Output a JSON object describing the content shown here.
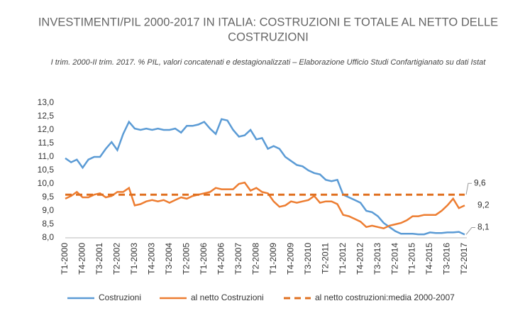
{
  "chart_data": {
    "type": "line",
    "title": "INVESTIMENTI/PIL 2000-2017 IN ITALIA: COSTRUZIONI E TOTALE AL NETTO DELLE",
    "title_line2": "COSTRUZIONI",
    "subtitle": "I trim. 2000-II trim. 2017. % PIL, valori concatenati e destagionalizzati – Elaborazione Ufficio Studi Confartigianato su dati Istat",
    "categories": [
      "T1-2000",
      null,
      null,
      "T4-2000",
      null,
      null,
      "T3-2001",
      null,
      null,
      "T2-2002",
      null,
      null,
      "T1-2003",
      null,
      null,
      "T4-2003",
      null,
      null,
      "T3-2004",
      null,
      null,
      "T2-2005",
      null,
      null,
      "T1-2006",
      null,
      null,
      "T4-2006",
      null,
      null,
      "T3-2007",
      null,
      null,
      "T2-2008",
      null,
      null,
      "T1-2009",
      null,
      null,
      "T4-2009",
      null,
      null,
      "T3-2010",
      null,
      null,
      "T2-2011",
      null,
      null,
      "T1-2012",
      null,
      null,
      "T4-2012",
      null,
      null,
      "T3-2013",
      null,
      null,
      "T2-2014",
      null,
      null,
      "T1-2015",
      null,
      null,
      "T4-2015",
      null,
      null,
      "T3-2016",
      null,
      null,
      "T2-2017"
    ],
    "series": [
      {
        "name": "Costruzioni",
        "color": "#5b9bd5",
        "dashed": false,
        "values": [
          10.95,
          10.8,
          10.9,
          10.6,
          10.9,
          11.0,
          11.0,
          11.3,
          11.55,
          11.25,
          11.85,
          12.3,
          12.05,
          12.0,
          12.05,
          12.0,
          12.05,
          12.0,
          12.0,
          12.05,
          11.9,
          12.15,
          12.15,
          12.2,
          12.3,
          12.05,
          11.85,
          12.4,
          12.35,
          12.0,
          11.75,
          11.8,
          12.0,
          11.65,
          11.7,
          11.3,
          11.4,
          11.3,
          11.0,
          10.85,
          10.7,
          10.65,
          10.5,
          10.4,
          10.35,
          10.15,
          10.1,
          10.15,
          9.6,
          9.5,
          9.4,
          9.3,
          9.0,
          8.95,
          8.8,
          8.55,
          8.4,
          8.25,
          8.15,
          8.15,
          8.15,
          8.13,
          8.13,
          8.2,
          8.18,
          8.18,
          8.2,
          8.2,
          8.22,
          8.12
        ],
        "value_labels": [
          null,
          null,
          null,
          null,
          null,
          null,
          null,
          null,
          null,
          null,
          null,
          null,
          null,
          null,
          null,
          null,
          null,
          null,
          null,
          null,
          null,
          null,
          null,
          null,
          null,
          null,
          null,
          null,
          null,
          null,
          null,
          null,
          null,
          null,
          null,
          null,
          null,
          null,
          null,
          null,
          null,
          null,
          null,
          null,
          null,
          null,
          null,
          null,
          null,
          null,
          null,
          null,
          null,
          null,
          null,
          null,
          null,
          null,
          null,
          null,
          null,
          null,
          null,
          null,
          null,
          null,
          null,
          null,
          null,
          "8,1"
        ]
      },
      {
        "name": "al netto Costruzioni",
        "color": "#ed7d31",
        "dashed": false,
        "values": [
          9.45,
          9.55,
          9.7,
          9.5,
          9.5,
          9.6,
          9.65,
          9.5,
          9.55,
          9.7,
          9.7,
          9.85,
          9.2,
          9.25,
          9.35,
          9.4,
          9.35,
          9.4,
          9.3,
          9.4,
          9.5,
          9.45,
          9.55,
          9.6,
          9.65,
          9.7,
          9.85,
          9.8,
          9.8,
          9.8,
          10.0,
          10.05,
          9.75,
          9.85,
          9.7,
          9.65,
          9.35,
          9.15,
          9.2,
          9.35,
          9.3,
          9.35,
          9.4,
          9.55,
          9.3,
          9.35,
          9.35,
          9.25,
          8.85,
          8.8,
          8.7,
          8.6,
          8.4,
          8.45,
          8.4,
          8.35,
          8.45,
          8.5,
          8.55,
          8.65,
          8.8,
          8.8,
          8.85,
          8.85,
          8.85,
          9.0,
          9.2,
          9.45,
          9.1,
          9.2
        ],
        "value_labels": [
          null,
          null,
          null,
          null,
          null,
          null,
          null,
          null,
          null,
          null,
          null,
          null,
          null,
          null,
          null,
          null,
          null,
          null,
          null,
          null,
          null,
          null,
          null,
          null,
          null,
          null,
          null,
          null,
          null,
          null,
          null,
          null,
          null,
          null,
          null,
          null,
          null,
          null,
          null,
          null,
          null,
          null,
          null,
          null,
          null,
          null,
          null,
          null,
          null,
          null,
          null,
          null,
          null,
          null,
          null,
          null,
          null,
          null,
          null,
          null,
          null,
          null,
          null,
          null,
          null,
          null,
          null,
          null,
          null,
          "9,2"
        ]
      },
      {
        "name": "al netto costruzioni:media 2000-2007",
        "color": "#e07020",
        "dashed": true,
        "values": [
          9.6,
          9.6,
          9.6,
          9.6,
          9.6,
          9.6,
          9.6,
          9.6,
          9.6,
          9.6,
          9.6,
          9.6,
          9.6,
          9.6,
          9.6,
          9.6,
          9.6,
          9.6,
          9.6,
          9.6,
          9.6,
          9.6,
          9.6,
          9.6,
          9.6,
          9.6,
          9.6,
          9.6,
          9.6,
          9.6,
          9.6,
          9.6,
          9.6,
          9.6,
          9.6,
          9.6,
          9.6,
          9.6,
          9.6,
          9.6,
          9.6,
          9.6,
          9.6,
          9.6,
          9.6,
          9.6,
          9.6,
          9.6,
          9.6,
          9.6,
          9.6,
          9.6,
          9.6,
          9.6,
          9.6,
          9.6,
          9.6,
          9.6,
          9.6,
          9.6,
          9.6,
          9.6,
          9.6,
          9.6,
          9.6,
          9.6,
          9.6,
          9.6,
          9.6,
          9.6
        ],
        "value_labels": [
          null,
          null,
          null,
          null,
          null,
          null,
          null,
          null,
          null,
          null,
          null,
          null,
          null,
          null,
          null,
          null,
          null,
          null,
          null,
          null,
          null,
          null,
          null,
          null,
          null,
          null,
          null,
          null,
          null,
          null,
          null,
          null,
          null,
          null,
          null,
          null,
          null,
          null,
          null,
          null,
          null,
          null,
          null,
          null,
          null,
          null,
          null,
          null,
          null,
          null,
          null,
          null,
          null,
          null,
          null,
          null,
          null,
          null,
          null,
          null,
          null,
          null,
          null,
          null,
          null,
          null,
          null,
          null,
          null,
          "9,6"
        ]
      }
    ],
    "ylim": [
      8.0,
      13.0
    ],
    "yticks": [
      {
        "value": 8.0,
        "label": "8,0"
      },
      {
        "value": 8.5,
        "label": "8,5"
      },
      {
        "value": 9.0,
        "label": "9,0"
      },
      {
        "value": 9.5,
        "label": "9,5"
      },
      {
        "value": 10.0,
        "label": "10,0"
      },
      {
        "value": 10.5,
        "label": "10,5"
      },
      {
        "value": 11.0,
        "label": "11,0"
      },
      {
        "value": 11.5,
        "label": "11,5"
      },
      {
        "value": 12.0,
        "label": "12,0"
      },
      {
        "value": 12.5,
        "label": "12,5"
      },
      {
        "value": 13.0,
        "label": "13,0"
      }
    ],
    "grid": false,
    "legend": "bottom"
  }
}
